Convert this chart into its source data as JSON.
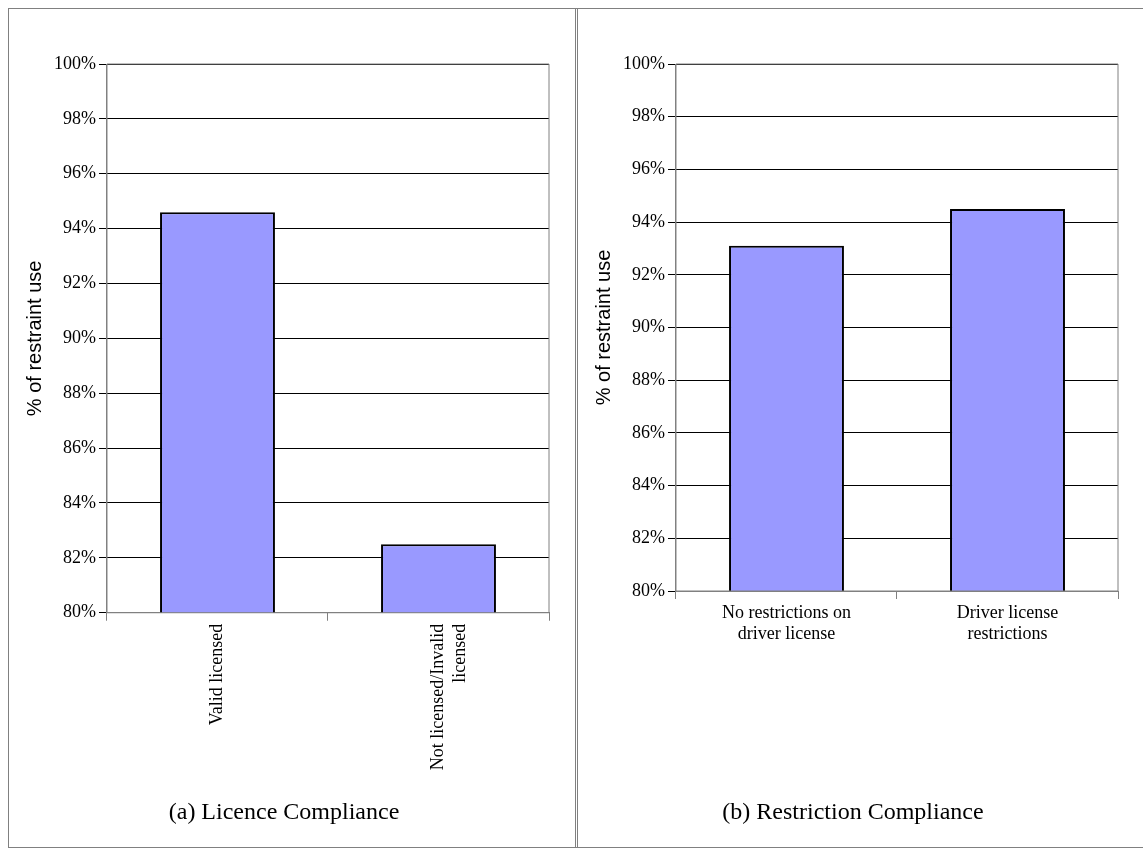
{
  "chart_data": [
    {
      "type": "bar",
      "title": "(a) Licence Compliance",
      "ylabel": "% of restraint use",
      "categories": [
        "Valid licensed",
        "Not licensed/Invalid licensed"
      ],
      "values": [
        94.6,
        82.5
      ],
      "color": "#9999ff",
      "ylim": [
        80,
        100
      ],
      "yticks": [
        {
          "value": 80,
          "label": "80%"
        },
        {
          "value": 82,
          "label": "82%"
        },
        {
          "value": 84,
          "label": "84%"
        },
        {
          "value": 86,
          "label": "86%"
        },
        {
          "value": 88,
          "label": "88%"
        },
        {
          "value": 90,
          "label": "90%"
        },
        {
          "value": 92,
          "label": "92%"
        },
        {
          "value": 94,
          "label": "94%"
        },
        {
          "value": 96,
          "label": "96%"
        },
        {
          "value": 98,
          "label": "98%"
        },
        {
          "value": 100,
          "label": "100%"
        }
      ],
      "grid": "y",
      "legend": false
    },
    {
      "type": "bar",
      "title": "(b) Restriction Compliance",
      "ylabel": "% of restraint use",
      "categories": [
        "No restrictions on driver license",
        "Driver license restrictions"
      ],
      "values": [
        93.1,
        94.5
      ],
      "color": "#9999ff",
      "ylim": [
        80,
        100
      ],
      "yticks": [
        {
          "value": 80,
          "label": "80%"
        },
        {
          "value": 82,
          "label": "82%"
        },
        {
          "value": 84,
          "label": "84%"
        },
        {
          "value": 86,
          "label": "86%"
        },
        {
          "value": 88,
          "label": "88%"
        },
        {
          "value": 90,
          "label": "90%"
        },
        {
          "value": 92,
          "label": "92%"
        },
        {
          "value": 94,
          "label": "94%"
        },
        {
          "value": 96,
          "label": "96%"
        },
        {
          "value": 98,
          "label": "98%"
        },
        {
          "value": 100,
          "label": "100%"
        }
      ],
      "grid": "y",
      "legend": false
    }
  ]
}
